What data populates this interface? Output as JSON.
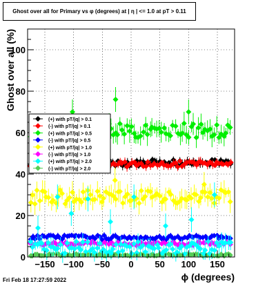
{
  "chart_data": {
    "type": "scatter",
    "title": "Ghost over all for Primary vs φ (degrees) at | η | <= 1.0 at pT > 0.11",
    "xlabel": "ϕ (degrees)",
    "ylabel": "Ghost over all (%)",
    "xlim": [
      -180,
      180
    ],
    "ylim": [
      0,
      110
    ],
    "xticks": [
      -150,
      -100,
      -50,
      0,
      50,
      100,
      150
    ],
    "yticks": [
      0,
      20,
      40,
      60,
      80,
      100
    ],
    "grid": true,
    "legend_position": "left-middle",
    "series": [
      {
        "name": "(+) with pT/|q| > 0.1",
        "color": "#000000",
        "marker": "diamond",
        "base": 45.5,
        "spread": 1.5
      },
      {
        "name": "(-) with pT/|q| > 0.1",
        "color": "#ff0000",
        "marker": "diamond",
        "base": 45.0,
        "spread": 1.5
      },
      {
        "name": "(+) with pT/|q| > 0.5",
        "color": "#00ee00",
        "marker": "diamond",
        "base": 61.0,
        "spread": 3.5
      },
      {
        "name": "(-) with pT/|q| > 0.5",
        "color": "#0000ff",
        "marker": "diamond",
        "base": 9.5,
        "spread": 1.0
      },
      {
        "name": "(+) with pT/|q| > 1.0",
        "color": "#ffff00",
        "marker": "diamond",
        "base": 29.0,
        "spread": 3.5
      },
      {
        "name": "(-) with pT/|q| > 1.0",
        "color": "#ff00ff",
        "marker": "diamond",
        "base": 6.5,
        "spread": 1.0
      },
      {
        "name": "(+) with pT/|q| > 2.0",
        "color": "#00ffff",
        "marker": "diamond",
        "base": 4.5,
        "spread": 3.0
      },
      {
        "name": "(-) with pT/|q| > 2.0",
        "color": "#55cc55",
        "marker": "diamond",
        "base": 1.0,
        "spread": 0.5
      }
    ],
    "outliers": [
      {
        "series": 2,
        "x": -27,
        "y": 76
      },
      {
        "series": 2,
        "x": -102,
        "y": 70
      },
      {
        "series": 2,
        "x": 100,
        "y": 70
      },
      {
        "series": 4,
        "x": -28,
        "y": 37
      },
      {
        "series": 4,
        "x": 127,
        "y": 35
      },
      {
        "series": 6,
        "x": -162,
        "y": 14
      },
      {
        "series": 6,
        "x": -128,
        "y": 29
      },
      {
        "series": 6,
        "x": -104,
        "y": 21
      },
      {
        "series": 6,
        "x": -75,
        "y": 28
      },
      {
        "series": 6,
        "x": -36,
        "y": 17
      },
      {
        "series": 6,
        "x": 5,
        "y": 29
      },
      {
        "series": 6,
        "x": 60,
        "y": 15
      },
      {
        "series": 6,
        "x": 105,
        "y": 18
      },
      {
        "series": 6,
        "x": 145,
        "y": 30
      }
    ]
  },
  "footer": {
    "timestamp": "Fri Feb 18 17:27:59 2022"
  }
}
